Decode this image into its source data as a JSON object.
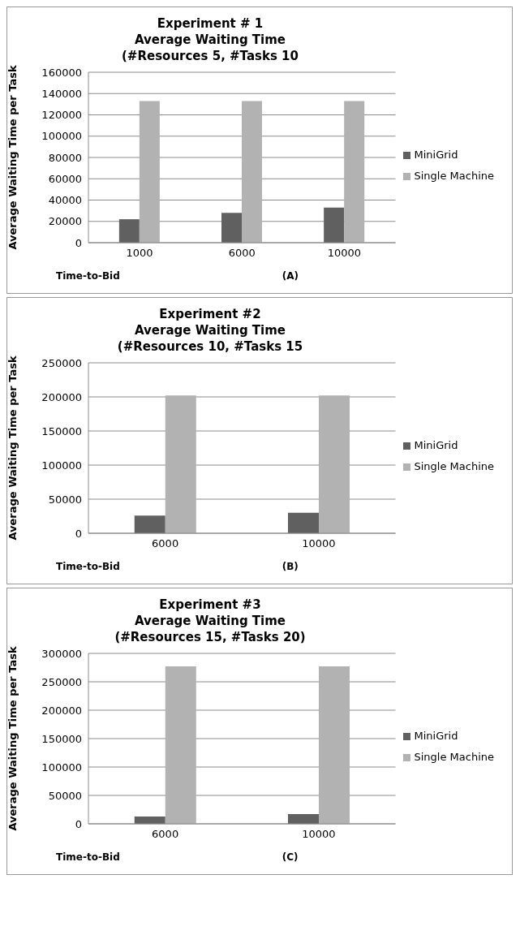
{
  "chart_data": [
    {
      "type": "bar",
      "title": "Experiment # 1\nAverage Waiting Time\n(#Resources 5, #Tasks 10",
      "xlabel": "Time-to-Bid",
      "ylabel": "Average Waiting Time per Task",
      "annotations": [
        "(A)"
      ],
      "categories": [
        "1000",
        "6000",
        "10000"
      ],
      "series": [
        {
          "name": "MiniGrid",
          "color": "#606060",
          "values": [
            22000,
            28000,
            33000
          ]
        },
        {
          "name": "Single Machine",
          "color": "#b2b2b2",
          "values": [
            133000,
            133000,
            133000
          ]
        }
      ],
      "ylim": [
        0,
        160000
      ],
      "yticks": [
        0,
        20000,
        40000,
        60000,
        80000,
        100000,
        120000,
        140000,
        160000
      ],
      "grid": "y",
      "legend": "right"
    },
    {
      "type": "bar",
      "title": "Experiment  #2\nAverage Waiting Time\n(#Resources 10, #Tasks 15",
      "xlabel": "Time-to-Bid",
      "ylabel": "Average Waiting Time per Task",
      "annotations": [
        "(B)"
      ],
      "categories": [
        "6000",
        "10000"
      ],
      "series": [
        {
          "name": "MiniGrid",
          "color": "#606060",
          "values": [
            26000,
            30000
          ]
        },
        {
          "name": "Single Machine",
          "color": "#b2b2b2",
          "values": [
            202000,
            202000
          ]
        }
      ],
      "ylim": [
        0,
        250000
      ],
      "yticks": [
        0,
        50000,
        100000,
        150000,
        200000,
        250000
      ],
      "grid": "y",
      "legend": "right"
    },
    {
      "type": "bar",
      "title": "Experiment #3\nAverage Waiting Time\n(#Resources 15, #Tasks 20)",
      "xlabel": "Time-to-Bid",
      "ylabel": "Average Waiting Time per Task",
      "annotations": [
        "(C)"
      ],
      "categories": [
        "6000",
        "10000"
      ],
      "series": [
        {
          "name": "MiniGrid",
          "color": "#606060",
          "values": [
            13000,
            17000
          ]
        },
        {
          "name": "Single Machine",
          "color": "#b2b2b2",
          "values": [
            277000,
            277000
          ]
        }
      ],
      "ylim": [
        0,
        300000
      ],
      "yticks": [
        0,
        50000,
        100000,
        150000,
        200000,
        250000,
        300000
      ],
      "grid": "y",
      "legend": "right"
    }
  ]
}
